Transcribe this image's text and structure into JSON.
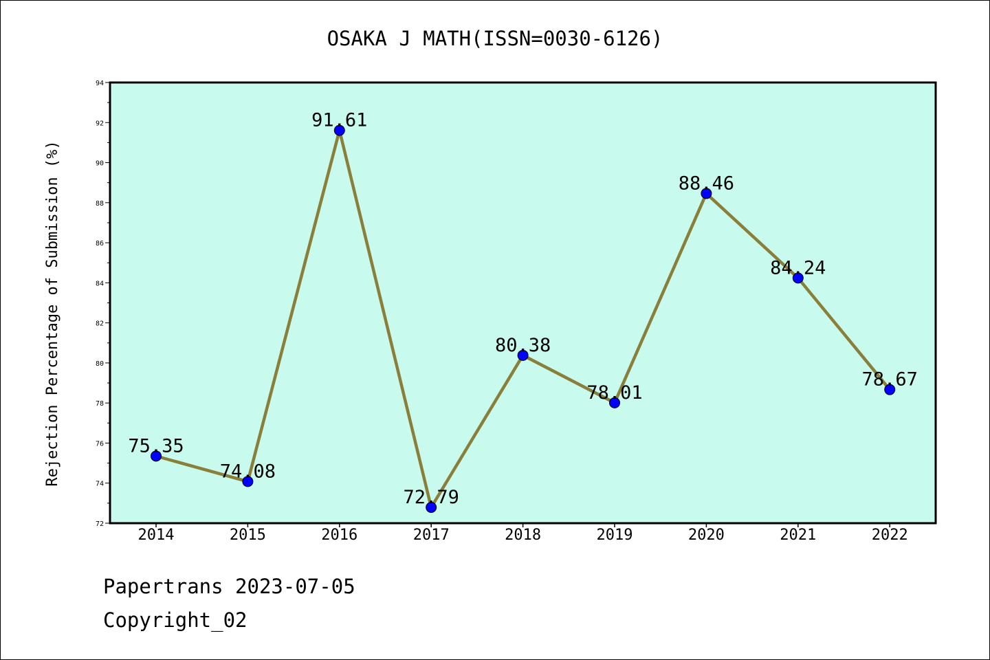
{
  "chart_data": {
    "type": "line",
    "title": "OSAKA J MATH(ISSN=0030-6126)",
    "xlabel": "",
    "ylabel": "Rejection Percentage of Submission (%)",
    "categories": [
      "2014",
      "2015",
      "2016",
      "2017",
      "2018",
      "2019",
      "2020",
      "2021",
      "2022"
    ],
    "series": [
      {
        "values": [
          75.35,
          74.08,
          91.61,
          72.79,
          80.38,
          78.01,
          88.46,
          84.24,
          78.67
        ],
        "data_labels": [
          "75.35",
          "74.08",
          "91.61",
          "72.79",
          "80.38",
          "78.01",
          "88.46",
          "84.24",
          "78.67"
        ]
      }
    ],
    "ylim": [
      72,
      94
    ],
    "yticks": [
      72,
      74,
      76,
      78,
      80,
      82,
      84,
      86,
      88,
      90,
      92,
      94
    ],
    "ytick_labels": [
      "72",
      "74",
      "76",
      "78",
      "80",
      "82",
      "84",
      "86",
      "88",
      "90",
      "92",
      "94"
    ],
    "grid": false,
    "colors": {
      "line": "#8a7f3a",
      "marker": "#0000ff",
      "plot_background": "#c8fbee",
      "axes": "#000000"
    }
  },
  "footer": {
    "line1": "Papertrans 2023-07-05",
    "line2": "Copyright_02"
  }
}
